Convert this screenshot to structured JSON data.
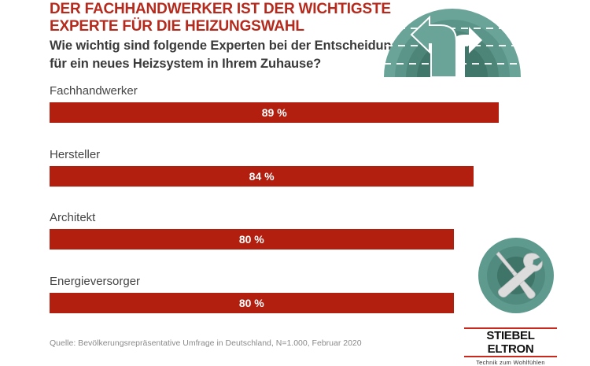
{
  "header": {
    "title_line1": "DER FACHHANDWERKER IST DER WICHTIGSTE",
    "title_line2": "EXPERTE FÜR DIE HEIZUNGSWAHL",
    "subtitle_line1": "Wie wichtig sind folgende Experten bei der Entscheidung",
    "subtitle_line2": "für ein neues Heizsystem in Ihrem Zuhause?"
  },
  "icons": {
    "top": "road-fork-arrows-icon",
    "bottom": "wrench-screwdriver-icon"
  },
  "colors": {
    "bar": "#b21f0f",
    "title": "#b52a1c",
    "icon_teal": "#5e9a8e"
  },
  "chart_data": {
    "type": "bar",
    "orientation": "horizontal",
    "title": "DER FACHHANDWERKER IST DER WICHTIGSTE EXPERTE FÜR DIE HEIZUNGSWAHL",
    "subtitle": "Wie wichtig sind folgende Experten bei der Entscheidung für ein neues Heizsystem in Ihrem Zuhause?",
    "categories": [
      "Fachhandwerker",
      "Hersteller",
      "Architekt",
      "Energieversorger"
    ],
    "values": [
      89,
      84,
      80,
      80
    ],
    "value_labels": [
      "89 %",
      "84 %",
      "80 %",
      "80 %"
    ],
    "unit": "%",
    "xlim": [
      0,
      100
    ],
    "xlabel": "",
    "ylabel": "",
    "grid": false,
    "legend": "none"
  },
  "footer": {
    "source": "Quelle: Bevölkerungsrepräsentative Umfrage in Deutschland, N=1.000, Februar 2020",
    "brand_name": "STIEBEL ELTRON",
    "brand_tagline": "Technik zum Wohlfühlen"
  }
}
